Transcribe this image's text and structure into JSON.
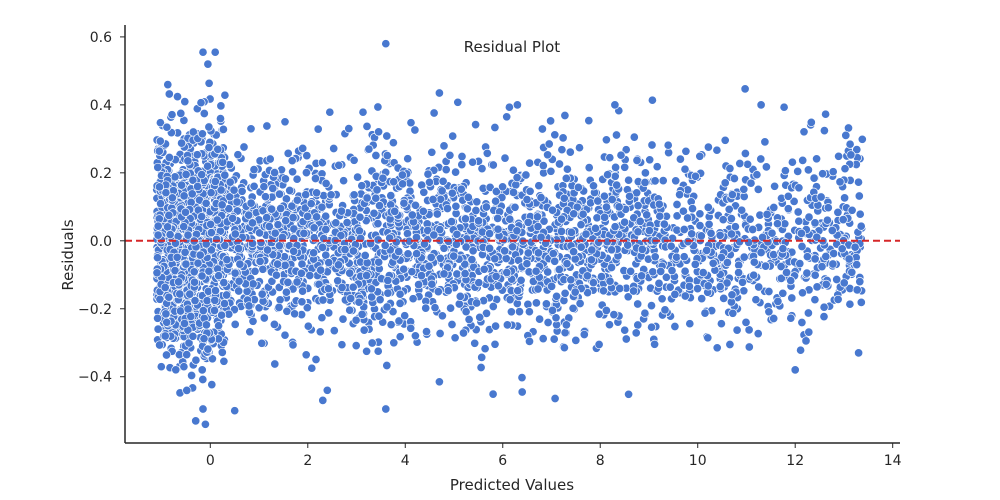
{
  "chart_data": {
    "type": "scatter",
    "title": "Residual Plot",
    "xlabel": "Predicted Values",
    "ylabel": "Residuals",
    "xlim": [
      -1.75,
      14.15
    ],
    "ylim": [
      -0.595,
      0.635
    ],
    "xticks": [
      0,
      2,
      4,
      6,
      8,
      10,
      12,
      14
    ],
    "yticks": [
      -0.4,
      -0.2,
      0.0,
      0.2,
      0.4,
      0.6
    ],
    "ytick_labels": [
      "−0.4",
      "−0.2",
      "0.0",
      "0.2",
      "0.4",
      "0.6"
    ],
    "point_color": "#4878cf",
    "point_edge_color": "#ffffff",
    "reference_line": {
      "y": 0.0,
      "color": "#d62728",
      "style": "dashed"
    },
    "grid": false,
    "spines": [
      "left",
      "bottom"
    ],
    "series": [
      {
        "point_count": 4000,
        "x_range": [
          -1.1,
          13.4
        ],
        "dense_region_x": [
          -1.1,
          0.3
        ],
        "outliers": [
          {
            "x": 3.6,
            "y": 0.58
          },
          {
            "x": -0.15,
            "y": 0.555
          },
          {
            "x": 0.1,
            "y": 0.555
          },
          {
            "x": -0.05,
            "y": 0.52
          },
          {
            "x": -0.05,
            "y": 0.52
          },
          {
            "x": -0.3,
            "y": -0.53
          },
          {
            "x": -0.1,
            "y": -0.54
          },
          {
            "x": 0.5,
            "y": -0.5
          },
          {
            "x": 3.6,
            "y": -0.495
          },
          {
            "x": -0.15,
            "y": -0.495
          },
          {
            "x": 11.3,
            "y": 0.4
          },
          {
            "x": 8.3,
            "y": 0.4
          },
          {
            "x": 6.3,
            "y": 0.4
          },
          {
            "x": 4.7,
            "y": 0.435
          },
          {
            "x": 2.4,
            "y": -0.44
          },
          {
            "x": 6.4,
            "y": -0.445
          },
          {
            "x": 4.7,
            "y": -0.415
          },
          {
            "x": 12.0,
            "y": -0.38
          },
          {
            "x": 13.3,
            "y": -0.33
          },
          {
            "x": 10.4,
            "y": -0.315
          }
        ]
      }
    ]
  }
}
